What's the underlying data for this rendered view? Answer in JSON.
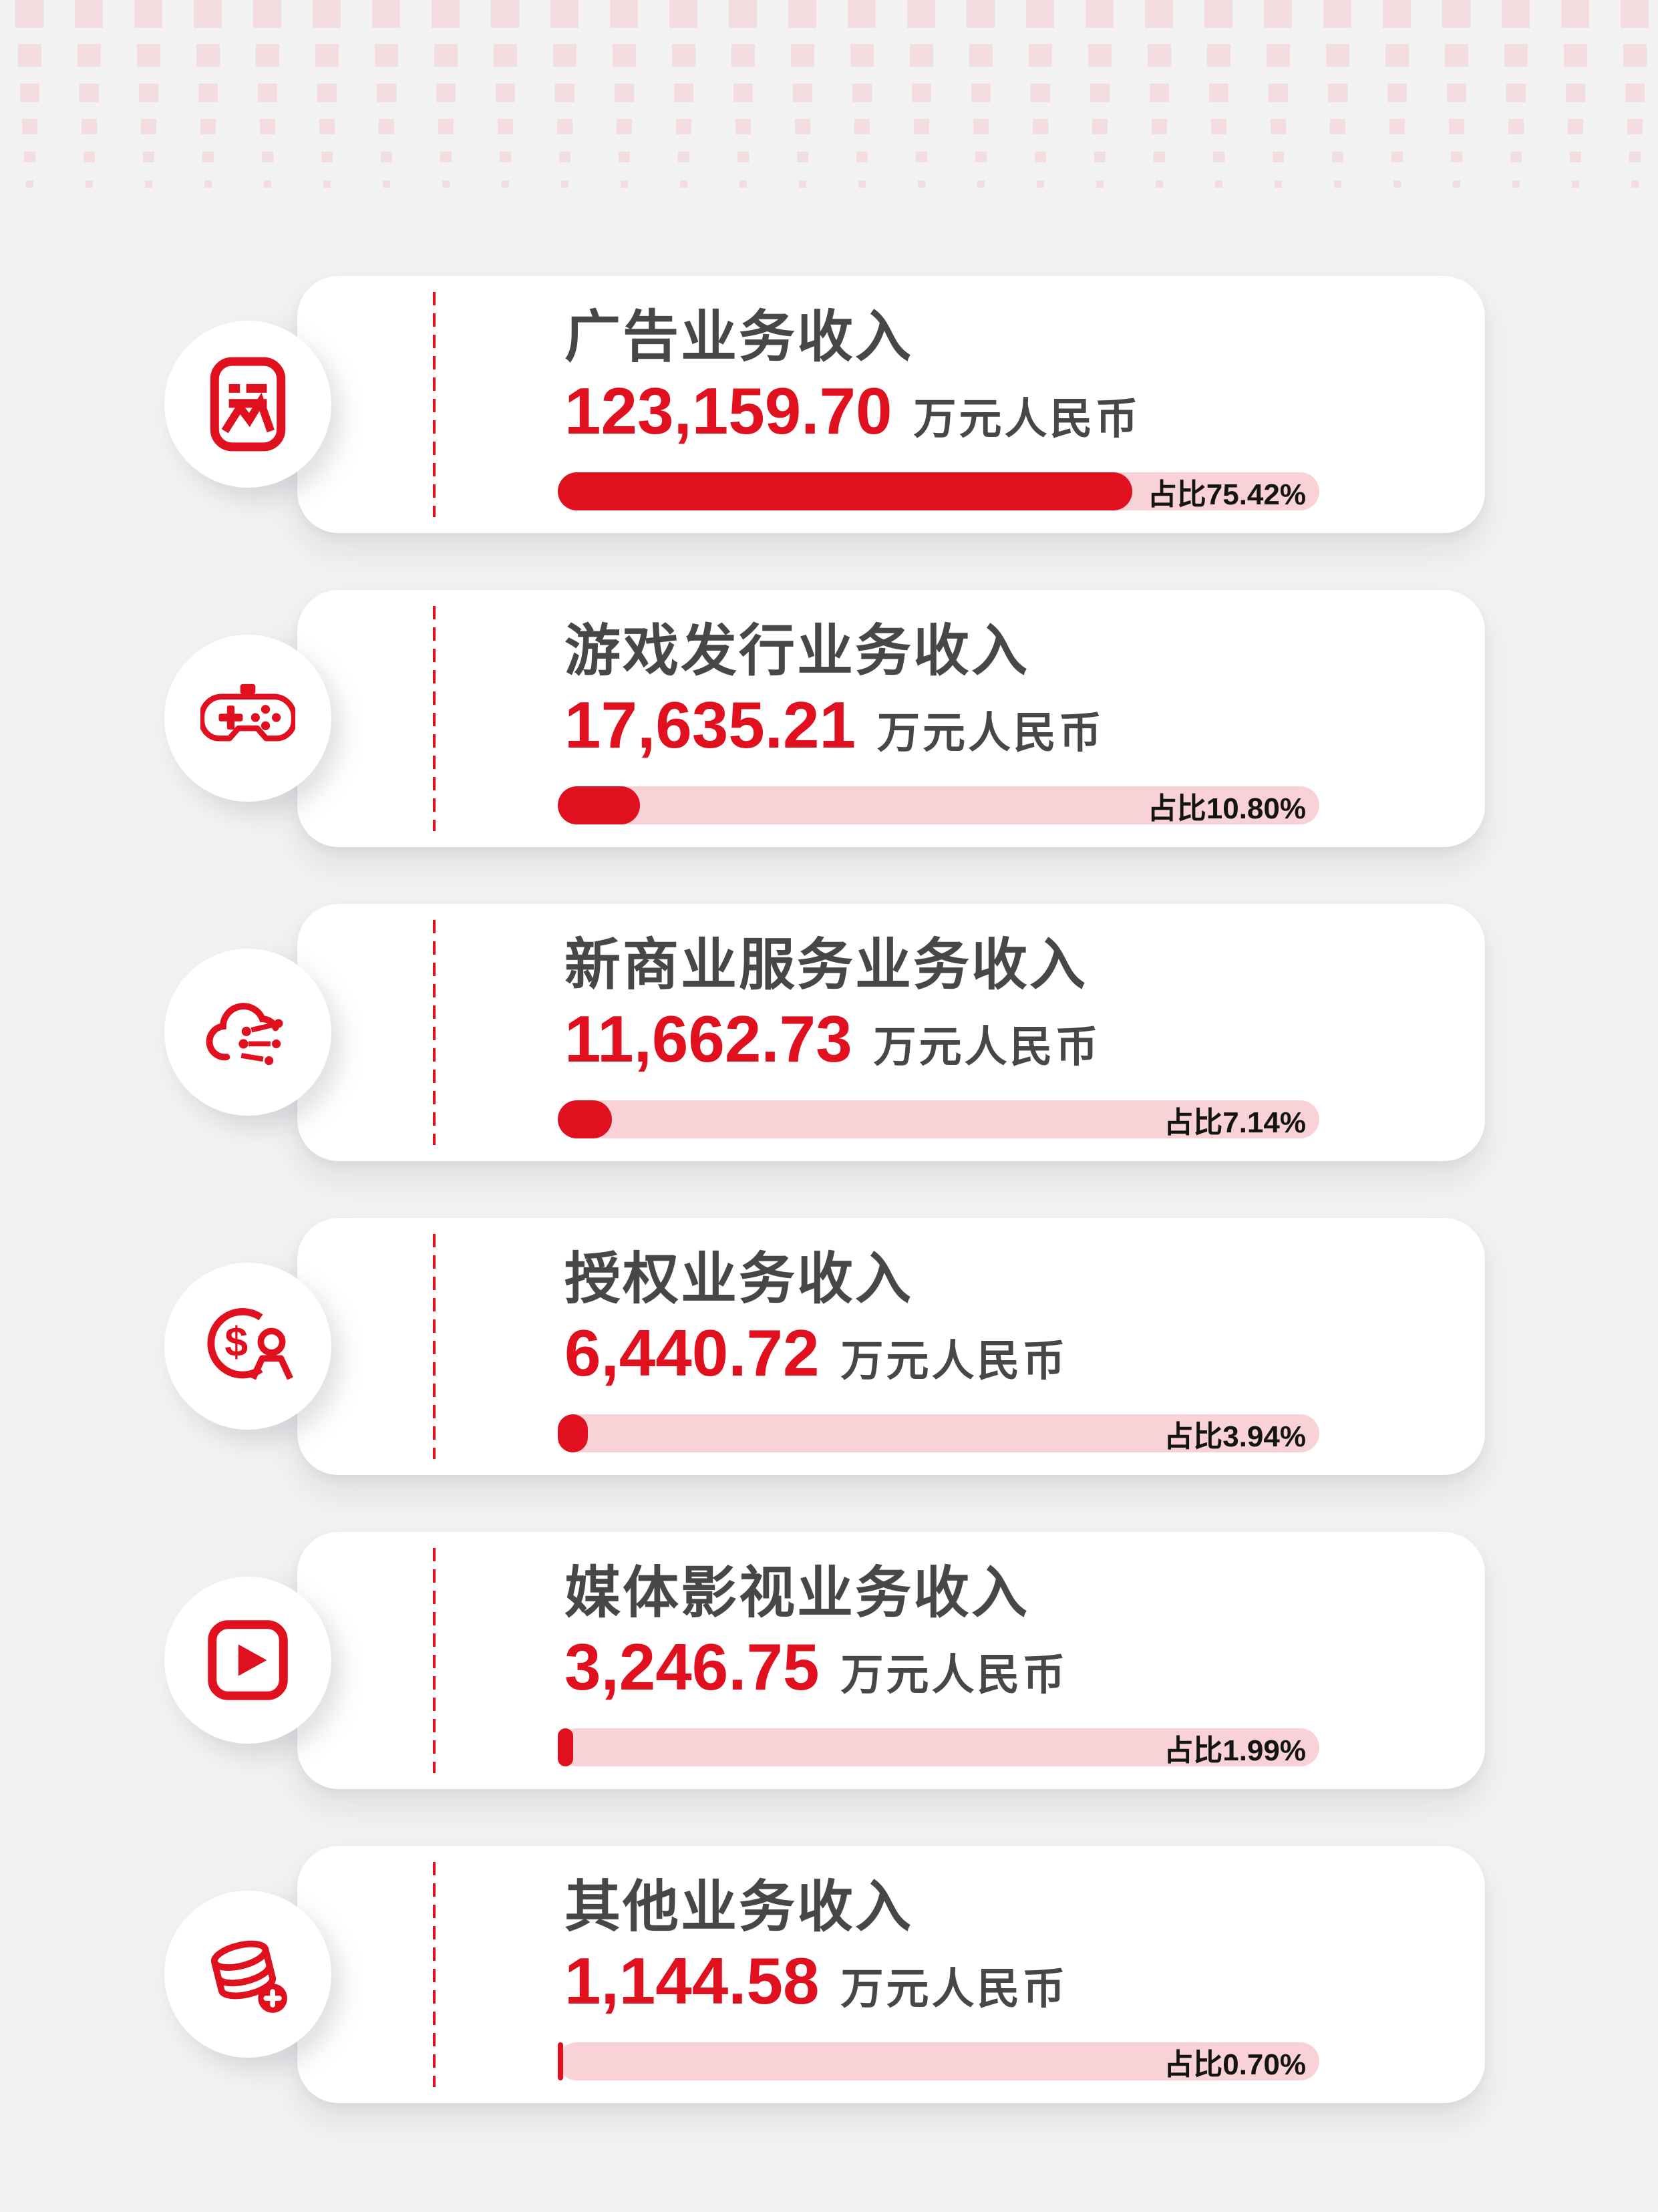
{
  "colors": {
    "accent_red": "#e0101f",
    "track_pink": "#f8d2d6",
    "pattern_pink": "#f3dde0",
    "title_gray": "#474749",
    "percent_black": "#141414",
    "background": "#f2f2f3",
    "card_white": "#ffffff"
  },
  "cards": [
    {
      "icon": "ad-banner-icon",
      "title": "广告业务收入",
      "value": "123,159.70",
      "unit": "万元人民币",
      "percent": 75.42,
      "percent_label": "占比75.42%"
    },
    {
      "icon": "gamepad-icon",
      "title": "游戏发行业务收入",
      "value": "17,635.21",
      "unit": "万元人民币",
      "percent": 10.8,
      "percent_label": "占比10.80%"
    },
    {
      "icon": "cloud-network-icon",
      "title": "新商业服务业务收入",
      "value": "11,662.73",
      "unit": "万元人民币",
      "percent": 7.14,
      "percent_label": "占比7.14%"
    },
    {
      "icon": "dollar-person-icon",
      "title": "授权业务收入",
      "value": "6,440.72",
      "unit": "万元人民币",
      "percent": 3.94,
      "percent_label": "占比3.94%"
    },
    {
      "icon": "video-play-icon",
      "title": "媒体影视业务收入",
      "value": "3,246.75",
      "unit": "万元人民币",
      "percent": 1.99,
      "percent_label": "占比1.99%"
    },
    {
      "icon": "coins-icon",
      "title": "其他业务收入",
      "value": "1,144.58",
      "unit": "万元人民币",
      "percent": 0.7,
      "percent_label": "占比0.70%"
    }
  ],
  "chart_data": {
    "type": "bar",
    "orientation": "horizontal",
    "categories": [
      "广告业务收入",
      "游戏发行业务收入",
      "新商业服务业务收入",
      "授权业务收入",
      "媒体影视业务收入",
      "其他业务收入"
    ],
    "series": [
      {
        "name": "收入（万元人民币）",
        "values": [
          123159.7,
          17635.21,
          11662.73,
          6440.72,
          3246.75,
          1144.58
        ]
      },
      {
        "name": "占比（%）",
        "values": [
          75.42,
          10.8,
          7.14,
          3.94,
          1.99,
          0.7
        ]
      }
    ],
    "unit": "万元人民币",
    "percent_prefix": "占比",
    "value_range_percent": [
      0,
      100
    ],
    "legend": false,
    "grid": false
  }
}
